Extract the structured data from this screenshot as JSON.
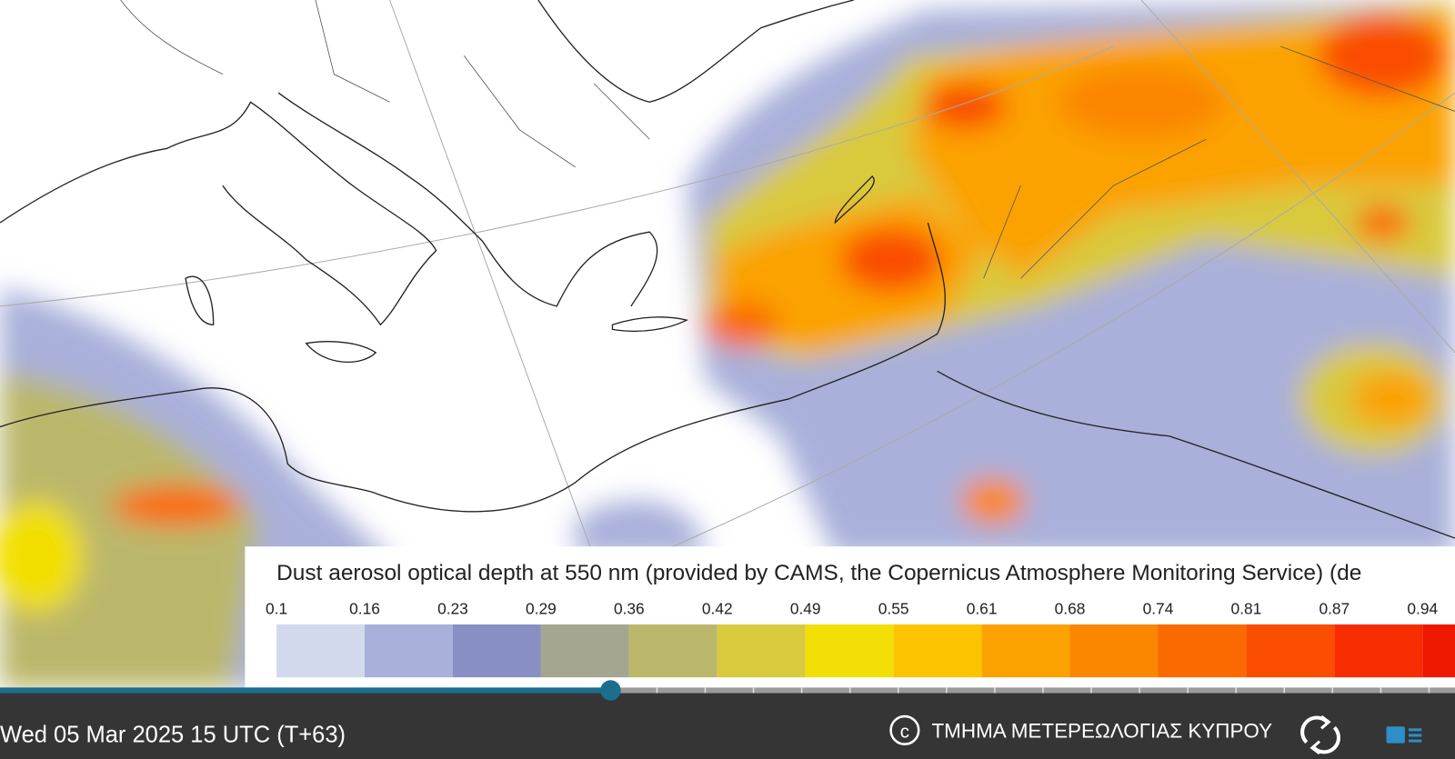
{
  "legend": {
    "title": "Dust aerosol optical depth at 550 nm (provided by CAMS, the Copernicus Atmosphere Monitoring Service) (de",
    "ticks": [
      "0.1",
      "0.16",
      "0.23",
      "0.29",
      "0.36",
      "0.42",
      "0.49",
      "0.55",
      "0.61",
      "0.68",
      "0.74",
      "0.81",
      "0.87",
      "0.94"
    ],
    "colors": [
      "#d3d9ec",
      "#a9b0da",
      "#8890c3",
      "#a5a68f",
      "#bbb76a",
      "#d9c93c",
      "#f2df06",
      "#fbc300",
      "#fba200",
      "#fb8600",
      "#fb6a00",
      "#fa4d00",
      "#f72c00",
      "#ee1800"
    ]
  },
  "footer": {
    "timestamp": "Wed 05 Mar 2025 15 UTC (T+63)",
    "credit": "ΤΜΗΜΑ ΜΕΤΕΡΕΩΛΟΓΙΑΣ ΚΥΠΡΟΥ"
  }
}
